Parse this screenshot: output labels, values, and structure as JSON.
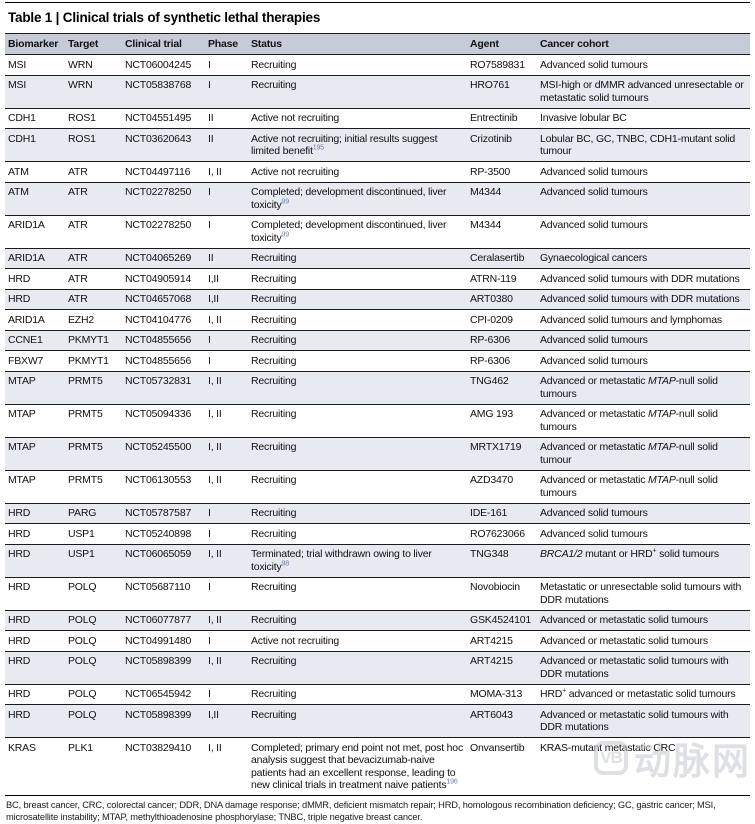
{
  "title": "Table 1 | Clinical trials of synthetic lethal therapies",
  "columns": [
    "Biomarker",
    "Target",
    "Clinical trial",
    "Phase",
    "Status",
    "Agent",
    "Cancer cohort"
  ],
  "colors": {
    "header_bg": "#c6cbd8",
    "stripe_bg": "#e8eaf1",
    "white_bg": "#ffffff",
    "rule": "#1a1a1a",
    "ref_blue": "#6c80a4",
    "watermark_gray": "#c3c7d0"
  },
  "rows": [
    {
      "biomarker": "MSI",
      "target": "WRN",
      "trial": "NCT06004245",
      "phase": "I",
      "status": "Recruiting",
      "agent": "RO7589831",
      "cohort": "Advanced solid tumours"
    },
    {
      "biomarker": "MSI",
      "target": "WRN",
      "trial": "NCT05838768",
      "phase": "I",
      "status": "Recruiting",
      "agent": "HRO761",
      "cohort": "MSI-high or dMMR advanced unresectable or metastatic solid tumours"
    },
    {
      "biomarker": "CDH1",
      "target": "ROS1",
      "trial": "NCT04551495",
      "phase": "II",
      "status": "Active not recruiting",
      "agent": "Entrectinib",
      "cohort": "Invasive lobular BC"
    },
    {
      "biomarker": "CDH1",
      "target": "ROS1",
      "trial": "NCT03620643",
      "phase": "II",
      "status": [
        {
          "t": "Active not recruiting; initial results suggest limited benefit"
        },
        {
          "t": "195",
          "ref": true
        }
      ],
      "agent": "Crizotinib",
      "cohort": "Lobular BC, GC, TNBC, CDH1-mutant solid tumour"
    },
    {
      "biomarker": "ATM",
      "target": "ATR",
      "trial": "NCT04497116",
      "phase": "I, II",
      "status": "Active not recruiting",
      "agent": "RP-3500",
      "cohort": "Advanced solid tumours"
    },
    {
      "biomarker": "ATM",
      "target": "ATR",
      "trial": "NCT02278250",
      "phase": "I",
      "status": [
        {
          "t": "Completed; development discontinued, liver toxicity"
        },
        {
          "t": "99",
          "ref": true
        }
      ],
      "agent": "M4344",
      "cohort": "Advanced solid tumours"
    },
    {
      "biomarker": "ARID1A",
      "target": "ATR",
      "trial": "NCT02278250",
      "phase": "I",
      "status": [
        {
          "t": "Completed; development discontinued, liver toxicity"
        },
        {
          "t": "99",
          "ref": true
        }
      ],
      "agent": "M4344",
      "cohort": "Advanced solid tumours"
    },
    {
      "biomarker": "ARID1A",
      "target": "ATR",
      "trial": "NCT04065269",
      "phase": "II",
      "status": "Recruiting",
      "agent": "Ceralasertib",
      "cohort": "Gynaecological cancers"
    },
    {
      "biomarker": "HRD",
      "target": "ATR",
      "trial": "NCT04905914",
      "phase": "I,II",
      "status": "Recruiting",
      "agent": "ATRN-119",
      "cohort": "Advanced solid tumours with DDR mutations"
    },
    {
      "biomarker": "HRD",
      "target": "ATR",
      "trial": "NCT04657068",
      "phase": "I,II",
      "status": "Recruiting",
      "agent": "ART0380",
      "cohort": "Advanced solid tumours with DDR mutations"
    },
    {
      "biomarker": "ARID1A",
      "target": "EZH2",
      "trial": "NCT04104776",
      "phase": "I, II",
      "status": "Recruiting",
      "agent": "CPI-0209",
      "cohort": "Advanced solid tumours and lymphomas"
    },
    {
      "biomarker": "CCNE1",
      "target": "PKMYT1",
      "trial": "NCT04855656",
      "phase": "I",
      "status": "Recruiting",
      "agent": "RP-6306",
      "cohort": "Advanced solid tumours"
    },
    {
      "biomarker": "FBXW7",
      "target": "PKMYT1",
      "trial": "NCT04855656",
      "phase": "I",
      "status": "Recruiting",
      "agent": "RP-6306",
      "cohort": "Advanced solid tumours"
    },
    {
      "biomarker": "MTAP",
      "target": "PRMT5",
      "trial": "NCT05732831",
      "phase": "I, II",
      "status": "Recruiting",
      "agent": "TNG462",
      "cohort": [
        {
          "t": "Advanced or metastatic "
        },
        {
          "t": "MTAP",
          "i": true
        },
        {
          "t": "-null solid tumours"
        }
      ]
    },
    {
      "biomarker": "MTAP",
      "target": "PRMT5",
      "trial": "NCT05094336",
      "phase": "I, II",
      "status": "Recruiting",
      "agent": "AMG 193",
      "cohort": [
        {
          "t": "Advanced or metastatic "
        },
        {
          "t": "MTAP",
          "i": true
        },
        {
          "t": "-null solid tumours"
        }
      ]
    },
    {
      "biomarker": "MTAP",
      "target": "PRMT5",
      "trial": "NCT05245500",
      "phase": "I, II",
      "status": "Recruiting",
      "agent": "MRTX1719",
      "cohort": [
        {
          "t": "Advanced or metastatic "
        },
        {
          "t": "MTAP",
          "i": true
        },
        {
          "t": "-null solid tumour"
        }
      ]
    },
    {
      "biomarker": "MTAP",
      "target": "PRMT5",
      "trial": "NCT06130553",
      "phase": "I, II",
      "status": "Recruiting",
      "agent": "AZD3470",
      "cohort": [
        {
          "t": "Advanced or metastatic "
        },
        {
          "t": "MTAP",
          "i": true
        },
        {
          "t": "-null solid tumours"
        }
      ]
    },
    {
      "biomarker": "HRD",
      "target": "PARG",
      "trial": "NCT05787587",
      "phase": "I",
      "status": "Recruiting",
      "agent": "IDE-161",
      "cohort": "Advanced solid tumours"
    },
    {
      "biomarker": "HRD",
      "target": "USP1",
      "trial": "NCT05240898",
      "phase": "I",
      "status": "Recruiting",
      "agent": "RO7623066",
      "cohort": "Advanced solid tumours"
    },
    {
      "biomarker": "HRD",
      "target": "USP1",
      "trial": "NCT06065059",
      "phase": "I, II",
      "status": [
        {
          "t": "Terminated; trial withdrawn owing to liver toxicity"
        },
        {
          "t": "98",
          "ref": true
        }
      ],
      "agent": "TNG348",
      "cohort": [
        {
          "t": "BRCA1/2",
          "i": true
        },
        {
          "t": " mutant or HRD"
        },
        {
          "t": "+",
          "sup": true
        },
        {
          "t": " solid tumours"
        }
      ]
    },
    {
      "biomarker": "HRD",
      "target": "POLQ",
      "trial": "NCT05687110",
      "phase": "I",
      "status": "Recruiting",
      "agent": "Novobiocin",
      "cohort": "Metastatic or unresectable solid tumours with DDR mutations"
    },
    {
      "biomarker": "HRD",
      "target": "POLQ",
      "trial": "NCT06077877",
      "phase": "I, II",
      "status": "Recruiting",
      "agent": "GSK4524101",
      "cohort": "Advanced or metastatic solid tumours"
    },
    {
      "biomarker": "HRD",
      "target": "POLQ",
      "trial": "NCT04991480",
      "phase": "I",
      "status": "Active not recruiting",
      "agent": "ART4215",
      "cohort": "Advanced or metastatic solid tumours"
    },
    {
      "biomarker": "HRD",
      "target": "POLQ",
      "trial": "NCT05898399",
      "phase": "I, II",
      "status": "Recruiting",
      "agent": "ART4215",
      "cohort": "Advanced or metastatic solid tumours with DDR mutations"
    },
    {
      "biomarker": "HRD",
      "target": "POLQ",
      "trial": "NCT06545942",
      "phase": "I",
      "status": "Recruiting",
      "agent": "MOMA-313",
      "cohort": [
        {
          "t": "HRD"
        },
        {
          "t": "+",
          "sup": true
        },
        {
          "t": " advanced or metastatic solid tumours"
        }
      ]
    },
    {
      "biomarker": "HRD",
      "target": "POLQ",
      "trial": "NCT05898399",
      "phase": "I,II",
      "status": "Recruiting",
      "agent": "ART6043",
      "cohort": "Advanced or metastatic solid tumours with DDR mutations"
    },
    {
      "biomarker": "KRAS",
      "target": "PLK1",
      "trial": "NCT03829410",
      "phase": "I, II",
      "status": [
        {
          "t": "Completed; primary end point not met, post hoc analysis suggest that bevacizumab-naive patients had an excellent response, leading to new clinical trials in treatment naive patients"
        },
        {
          "t": "196",
          "ref": true
        }
      ],
      "agent": "Onvansertib",
      "cohort": "KRAS-mutant metastatic CRC"
    }
  ],
  "footnote": "BC, breast cancer, CRC, colorectal cancer; DDR, DNA damage response; dMMR, deficient mismatch repair; HRD, homologous recombination deficiency; GC, gastric cancer; MSI, microsatellite instability; MTAP, methylthioadenosine phosphorylase; TNBC, triple negative breast cancer.",
  "watermark": {
    "logo": "VB",
    "text": "动脉网"
  }
}
